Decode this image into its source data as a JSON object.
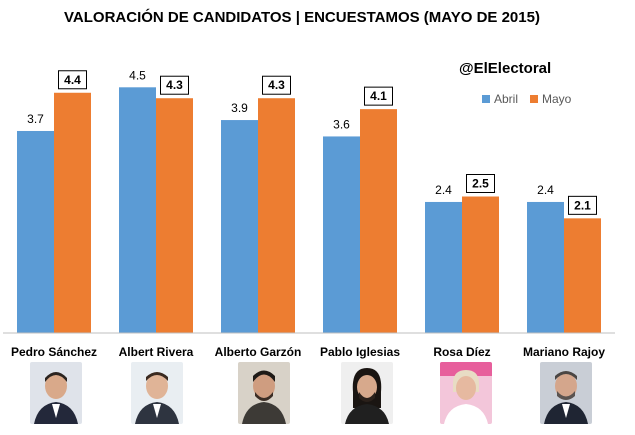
{
  "watermark": "@ElElectoral",
  "colors": {
    "abril": "#5B9BD5",
    "mayo": "#ED7D31",
    "axis": "#BFBFBF"
  },
  "chart_data": {
    "type": "bar",
    "title": "VALORACIÓN DE CANDIDATOS |  ENCUESTAMOS (MAYO DE 2015)",
    "categories": [
      "Pedro Sánchez",
      "Albert Rivera",
      "Alberto Garzón",
      "Pablo Iglesias",
      "Rosa Díez",
      "Mariano Rajoy"
    ],
    "series": [
      {
        "name": "Abril",
        "values": [
          3.7,
          4.5,
          3.9,
          3.6,
          2.4,
          2.4
        ]
      },
      {
        "name": "Mayo",
        "values": [
          4.4,
          4.3,
          4.3,
          4.1,
          2.5,
          2.1
        ]
      }
    ],
    "value_labels": {
      "Abril": [
        "3.7",
        "4.5",
        "3.9",
        "3.6",
        "2.4",
        "2.4"
      ],
      "Mayo": [
        "4.4",
        "4.3",
        "4.3",
        "4.1",
        "2.5",
        "2.1"
      ]
    },
    "ylim": [
      0,
      5
    ],
    "grid": false,
    "legend": "top-right",
    "xlabel": "",
    "ylabel": ""
  }
}
